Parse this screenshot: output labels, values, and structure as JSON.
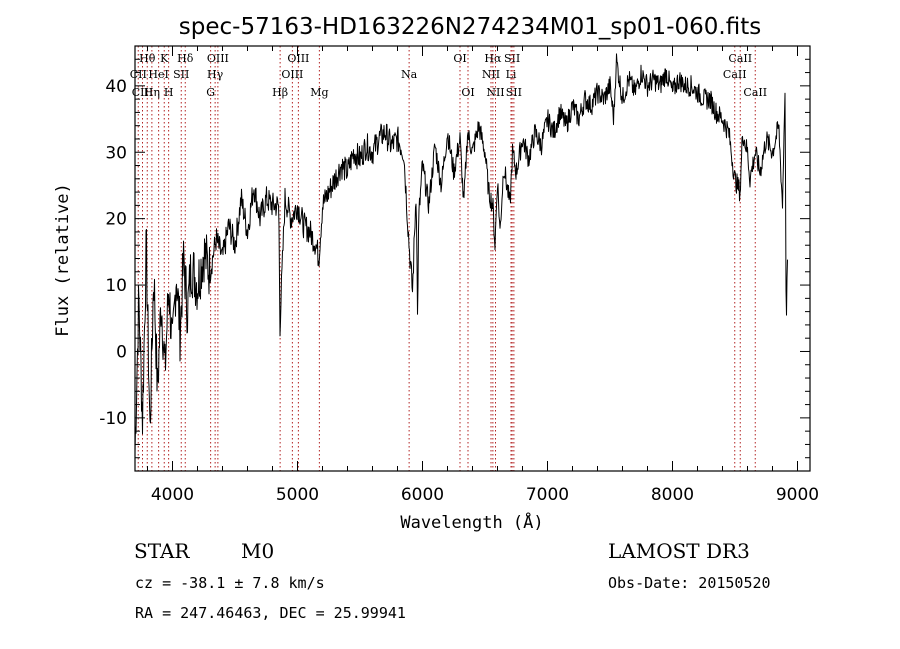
{
  "chart_data": {
    "type": "line",
    "title": "spec-57163-HD163226N274234M01_sp01-060.fits",
    "xlabel": "Wavelength (Å)",
    "ylabel": "Flux (relative)",
    "xlim": [
      3700,
      9100
    ],
    "ylim": [
      -18,
      46
    ],
    "xticks": [
      4000,
      5000,
      6000,
      7000,
      8000,
      9000
    ],
    "yticks": [
      -10,
      0,
      10,
      20,
      30,
      40
    ],
    "grid": false,
    "line_color": "#000000",
    "marker_color": "#b22222",
    "series": [
      {
        "name": "flux",
        "x": [
          3700,
          3730,
          3760,
          3790,
          3820,
          3850,
          3880,
          3910,
          3940,
          3970,
          4000,
          4030,
          4060,
          4090,
          4120,
          4150,
          4200,
          4250,
          4300,
          4350,
          4400,
          4450,
          4500,
          4550,
          4600,
          4650,
          4700,
          4750,
          4800,
          4850,
          4860,
          4900,
          4950,
          5000,
          5050,
          5100,
          5150,
          5170,
          5200,
          5250,
          5300,
          5350,
          5400,
          5450,
          5500,
          5550,
          5600,
          5650,
          5700,
          5750,
          5800,
          5850,
          5893,
          5920,
          5950,
          5960,
          5970,
          6000,
          6050,
          6100,
          6150,
          6200,
          6250,
          6300,
          6330,
          6360,
          6400,
          6450,
          6500,
          6530,
          6563,
          6580,
          6600,
          6620,
          6650,
          6700,
          6720,
          6750,
          6800,
          6850,
          6900,
          6950,
          7000,
          7050,
          7100,
          7150,
          7200,
          7250,
          7300,
          7350,
          7400,
          7450,
          7500,
          7530,
          7550,
          7600,
          7650,
          7700,
          7750,
          7800,
          7850,
          7900,
          7950,
          8000,
          8050,
          8100,
          8150,
          8200,
          8250,
          8300,
          8350,
          8400,
          8450,
          8498,
          8542,
          8560,
          8600,
          8620,
          8662,
          8700,
          8750,
          8800,
          8850,
          8880,
          8900,
          8910,
          8920
        ],
        "values": [
          -15,
          8,
          -10,
          16,
          -12,
          12,
          -6,
          8,
          -3,
          10,
          0,
          12,
          3,
          14,
          6,
          13,
          10,
          15,
          12,
          17,
          14,
          19,
          16,
          23,
          18,
          25,
          20,
          23,
          22,
          22,
          4,
          23,
          20,
          22,
          19,
          18,
          16,
          14,
          22,
          24,
          26,
          28,
          27,
          30,
          29,
          31,
          30,
          32,
          33,
          31,
          32,
          30,
          16,
          9,
          25,
          5,
          20,
          28,
          22,
          31,
          25,
          33,
          27,
          32,
          22,
          33,
          30,
          34,
          30,
          24,
          22,
          16,
          26,
          18,
          28,
          22,
          30,
          27,
          32,
          29,
          33,
          31,
          35,
          33,
          36,
          34,
          37,
          35,
          38,
          37,
          39,
          38,
          40,
          35,
          44,
          38,
          41,
          39,
          42,
          40,
          41,
          40,
          42,
          39,
          41,
          40,
          40,
          39,
          38,
          38,
          36,
          35,
          33,
          26,
          24,
          33,
          30,
          26,
          30,
          27,
          32,
          30,
          34,
          22,
          40,
          3,
          14
        ]
      }
    ],
    "line_markers": [
      {
        "label": "Hθ",
        "x": 3798,
        "row": 1
      },
      {
        "label": "CII",
        "x": 3726,
        "row": 2
      },
      {
        "label": "CIII",
        "x": 3760,
        "row": 3
      },
      {
        "label": "K",
        "x": 3934,
        "row": 1
      },
      {
        "label": "HeI",
        "x": 3889,
        "row": 2
      },
      {
        "label": "Hη",
        "x": 3835,
        "row": 3
      },
      {
        "label": "H",
        "x": 3969,
        "row": 3
      },
      {
        "label": "Hδ",
        "x": 4102,
        "row": 1
      },
      {
        "label": "SII",
        "x": 4070,
        "row": 2
      },
      {
        "label": "OIII",
        "x": 4363,
        "row": 1
      },
      {
        "label": "Hγ",
        "x": 4341,
        "row": 2
      },
      {
        "label": "G",
        "x": 4305,
        "row": 3
      },
      {
        "label": "Hβ",
        "x": 4861,
        "row": 3
      },
      {
        "label": "OIII",
        "x": 5007,
        "row": 1
      },
      {
        "label": "OIII",
        "x": 4959,
        "row": 2
      },
      {
        "label": "Mg",
        "x": 5175,
        "row": 3
      },
      {
        "label": "Na",
        "x": 5893,
        "row": 2
      },
      {
        "label": "OI",
        "x": 6300,
        "row": 1
      },
      {
        "label": "OI",
        "x": 6364,
        "row": 3
      },
      {
        "label": "Hα",
        "x": 6563,
        "row": 1
      },
      {
        "label": "SII",
        "x": 6717,
        "row": 1
      },
      {
        "label": "NII",
        "x": 6548,
        "row": 2
      },
      {
        "label": "Li",
        "x": 6708,
        "row": 2
      },
      {
        "label": "NII",
        "x": 6584,
        "row": 3
      },
      {
        "label": "SII",
        "x": 6731,
        "row": 3
      },
      {
        "label": "CaII",
        "x": 8542,
        "row": 1
      },
      {
        "label": "CaII",
        "x": 8498,
        "row": 2
      },
      {
        "label": "CaII",
        "x": 8662,
        "row": 3
      }
    ]
  },
  "footer": {
    "object_type": "STAR",
    "subclass": "M0",
    "survey": "LAMOST DR3",
    "redshift": "cz = -38.1 ± 7.8 km/s",
    "obs_date": "Obs-Date: 20150520",
    "coords": "RA = 247.46463, DEC =  25.99941"
  }
}
